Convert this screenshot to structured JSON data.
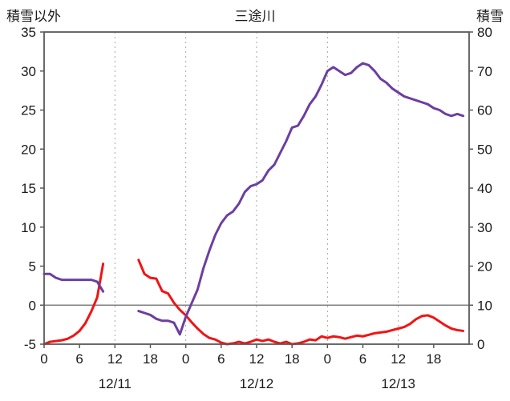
{
  "header": {
    "title": "三途川",
    "left_axis_title": "積雪以外",
    "right_axis_title": "積雪"
  },
  "colors": {
    "red_line": "#f01414",
    "purple_line": "#6b3fa0",
    "grid": "#a6a6a6",
    "axis": "#595959",
    "zero_line": "#808080",
    "text": "#1a1a1a"
  },
  "chart_data": {
    "type": "line",
    "title": "三途川",
    "left_axis": {
      "label": "積雪以外",
      "range": [
        -5,
        35
      ],
      "ticks": [
        35,
        30,
        25,
        20,
        15,
        10,
        5,
        0,
        -5
      ]
    },
    "right_axis": {
      "label": "積雪",
      "range": [
        0,
        80
      ],
      "ticks": [
        80,
        70,
        60,
        50,
        40,
        30,
        20,
        10,
        0
      ]
    },
    "x_axis": {
      "range_hours": [
        0,
        72
      ],
      "tick_hours": [
        0,
        6,
        12,
        18,
        24,
        30,
        36,
        42,
        48,
        54,
        60,
        66
      ],
      "tick_labels": [
        "0",
        "6",
        "12",
        "18",
        "0",
        "6",
        "12",
        "18",
        "0",
        "6",
        "12",
        "18"
      ],
      "date_labels": [
        {
          "hour": 12,
          "label": "12/11"
        },
        {
          "hour": 36,
          "label": "12/12"
        },
        {
          "hour": 60,
          "label": "12/13"
        }
      ]
    },
    "gridlines": {
      "vertical_hours": [
        12,
        24,
        36,
        48,
        60
      ],
      "horizontal_left_values": [
        0
      ]
    },
    "legend": "none",
    "series": [
      {
        "name": "other-than-snow",
        "axis": "left",
        "color_key": "red_line",
        "x_hours_step": 1,
        "values": [
          -5.0,
          -4.7,
          -4.6,
          -4.5,
          -4.3,
          -3.9,
          -3.3,
          -2.3,
          -0.8,
          1.0,
          5.3,
          null,
          null,
          null,
          null,
          null,
          5.8,
          4.0,
          3.5,
          3.4,
          1.8,
          1.5,
          0.3,
          -0.6,
          -1.3,
          -2.2,
          -3.0,
          -3.7,
          -4.2,
          -4.4,
          -4.8,
          -5.0,
          -4.9,
          -4.7,
          -4.9,
          -4.7,
          -4.4,
          -4.6,
          -4.4,
          -4.7,
          -4.9,
          -4.7,
          -5.0,
          -4.9,
          -4.7,
          -4.4,
          -4.5,
          -4.0,
          -4.2,
          -4.0,
          -4.1,
          -4.3,
          -4.1,
          -3.9,
          -4.0,
          -3.8,
          -3.6,
          -3.5,
          -3.4,
          -3.2,
          -3.0,
          -2.8,
          -2.4,
          -1.8,
          -1.4,
          -1.3,
          -1.6,
          -2.1,
          -2.6,
          -3.0,
          -3.2,
          -3.3
        ]
      },
      {
        "name": "snow-depth",
        "axis": "right",
        "color_key": "purple_line",
        "x_hours_step": 1,
        "values": [
          18,
          18,
          17,
          16.5,
          16.5,
          16.5,
          16.5,
          16.5,
          16.5,
          16,
          13.5,
          null,
          null,
          null,
          null,
          null,
          8.5,
          8,
          7.5,
          6.5,
          6,
          6,
          5.5,
          2.5,
          7,
          10.5,
          14,
          19.5,
          24,
          28,
          31,
          33,
          34,
          36,
          39,
          40.5,
          41,
          42,
          44.5,
          46,
          49,
          52,
          55.5,
          56,
          58.5,
          61.5,
          63.5,
          66.5,
          70,
          71,
          70,
          69,
          69.5,
          71,
          72,
          71.5,
          70,
          68,
          67,
          65.5,
          64.5,
          63.5,
          63,
          62.5,
          62,
          61.5,
          60.5,
          60,
          59,
          58.5,
          59,
          58.5
        ]
      }
    ]
  }
}
